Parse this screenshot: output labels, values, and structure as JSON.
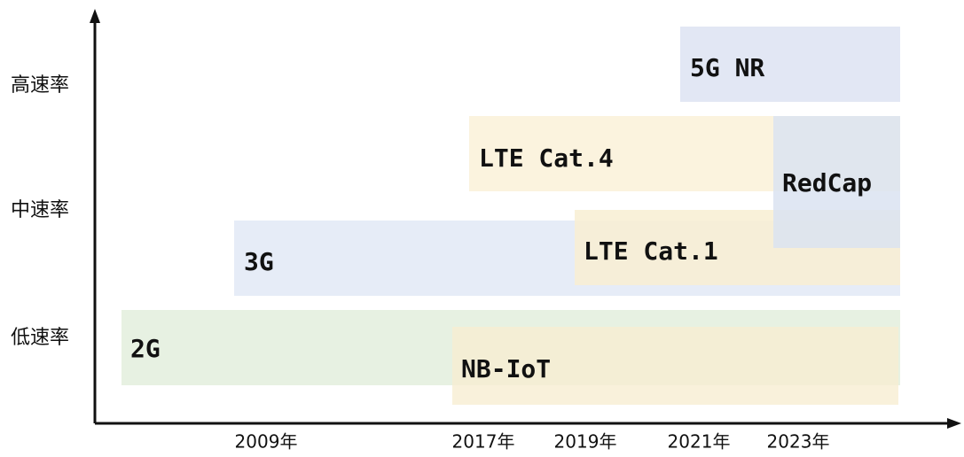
{
  "y_axis": {
    "labels": [
      "高速率",
      "中速率",
      "低速率"
    ]
  },
  "x_axis": {
    "labels": [
      "2009年",
      "2017年",
      "2019年",
      "2021年",
      "2023年"
    ]
  },
  "blocks": [
    {
      "label": "2G"
    },
    {
      "label": "3G"
    },
    {
      "label": "NB-IoT"
    },
    {
      "label": "LTE Cat.4"
    },
    {
      "label": "LTE Cat.1"
    },
    {
      "label": "5G NR"
    },
    {
      "label": "RedCap"
    }
  ]
}
